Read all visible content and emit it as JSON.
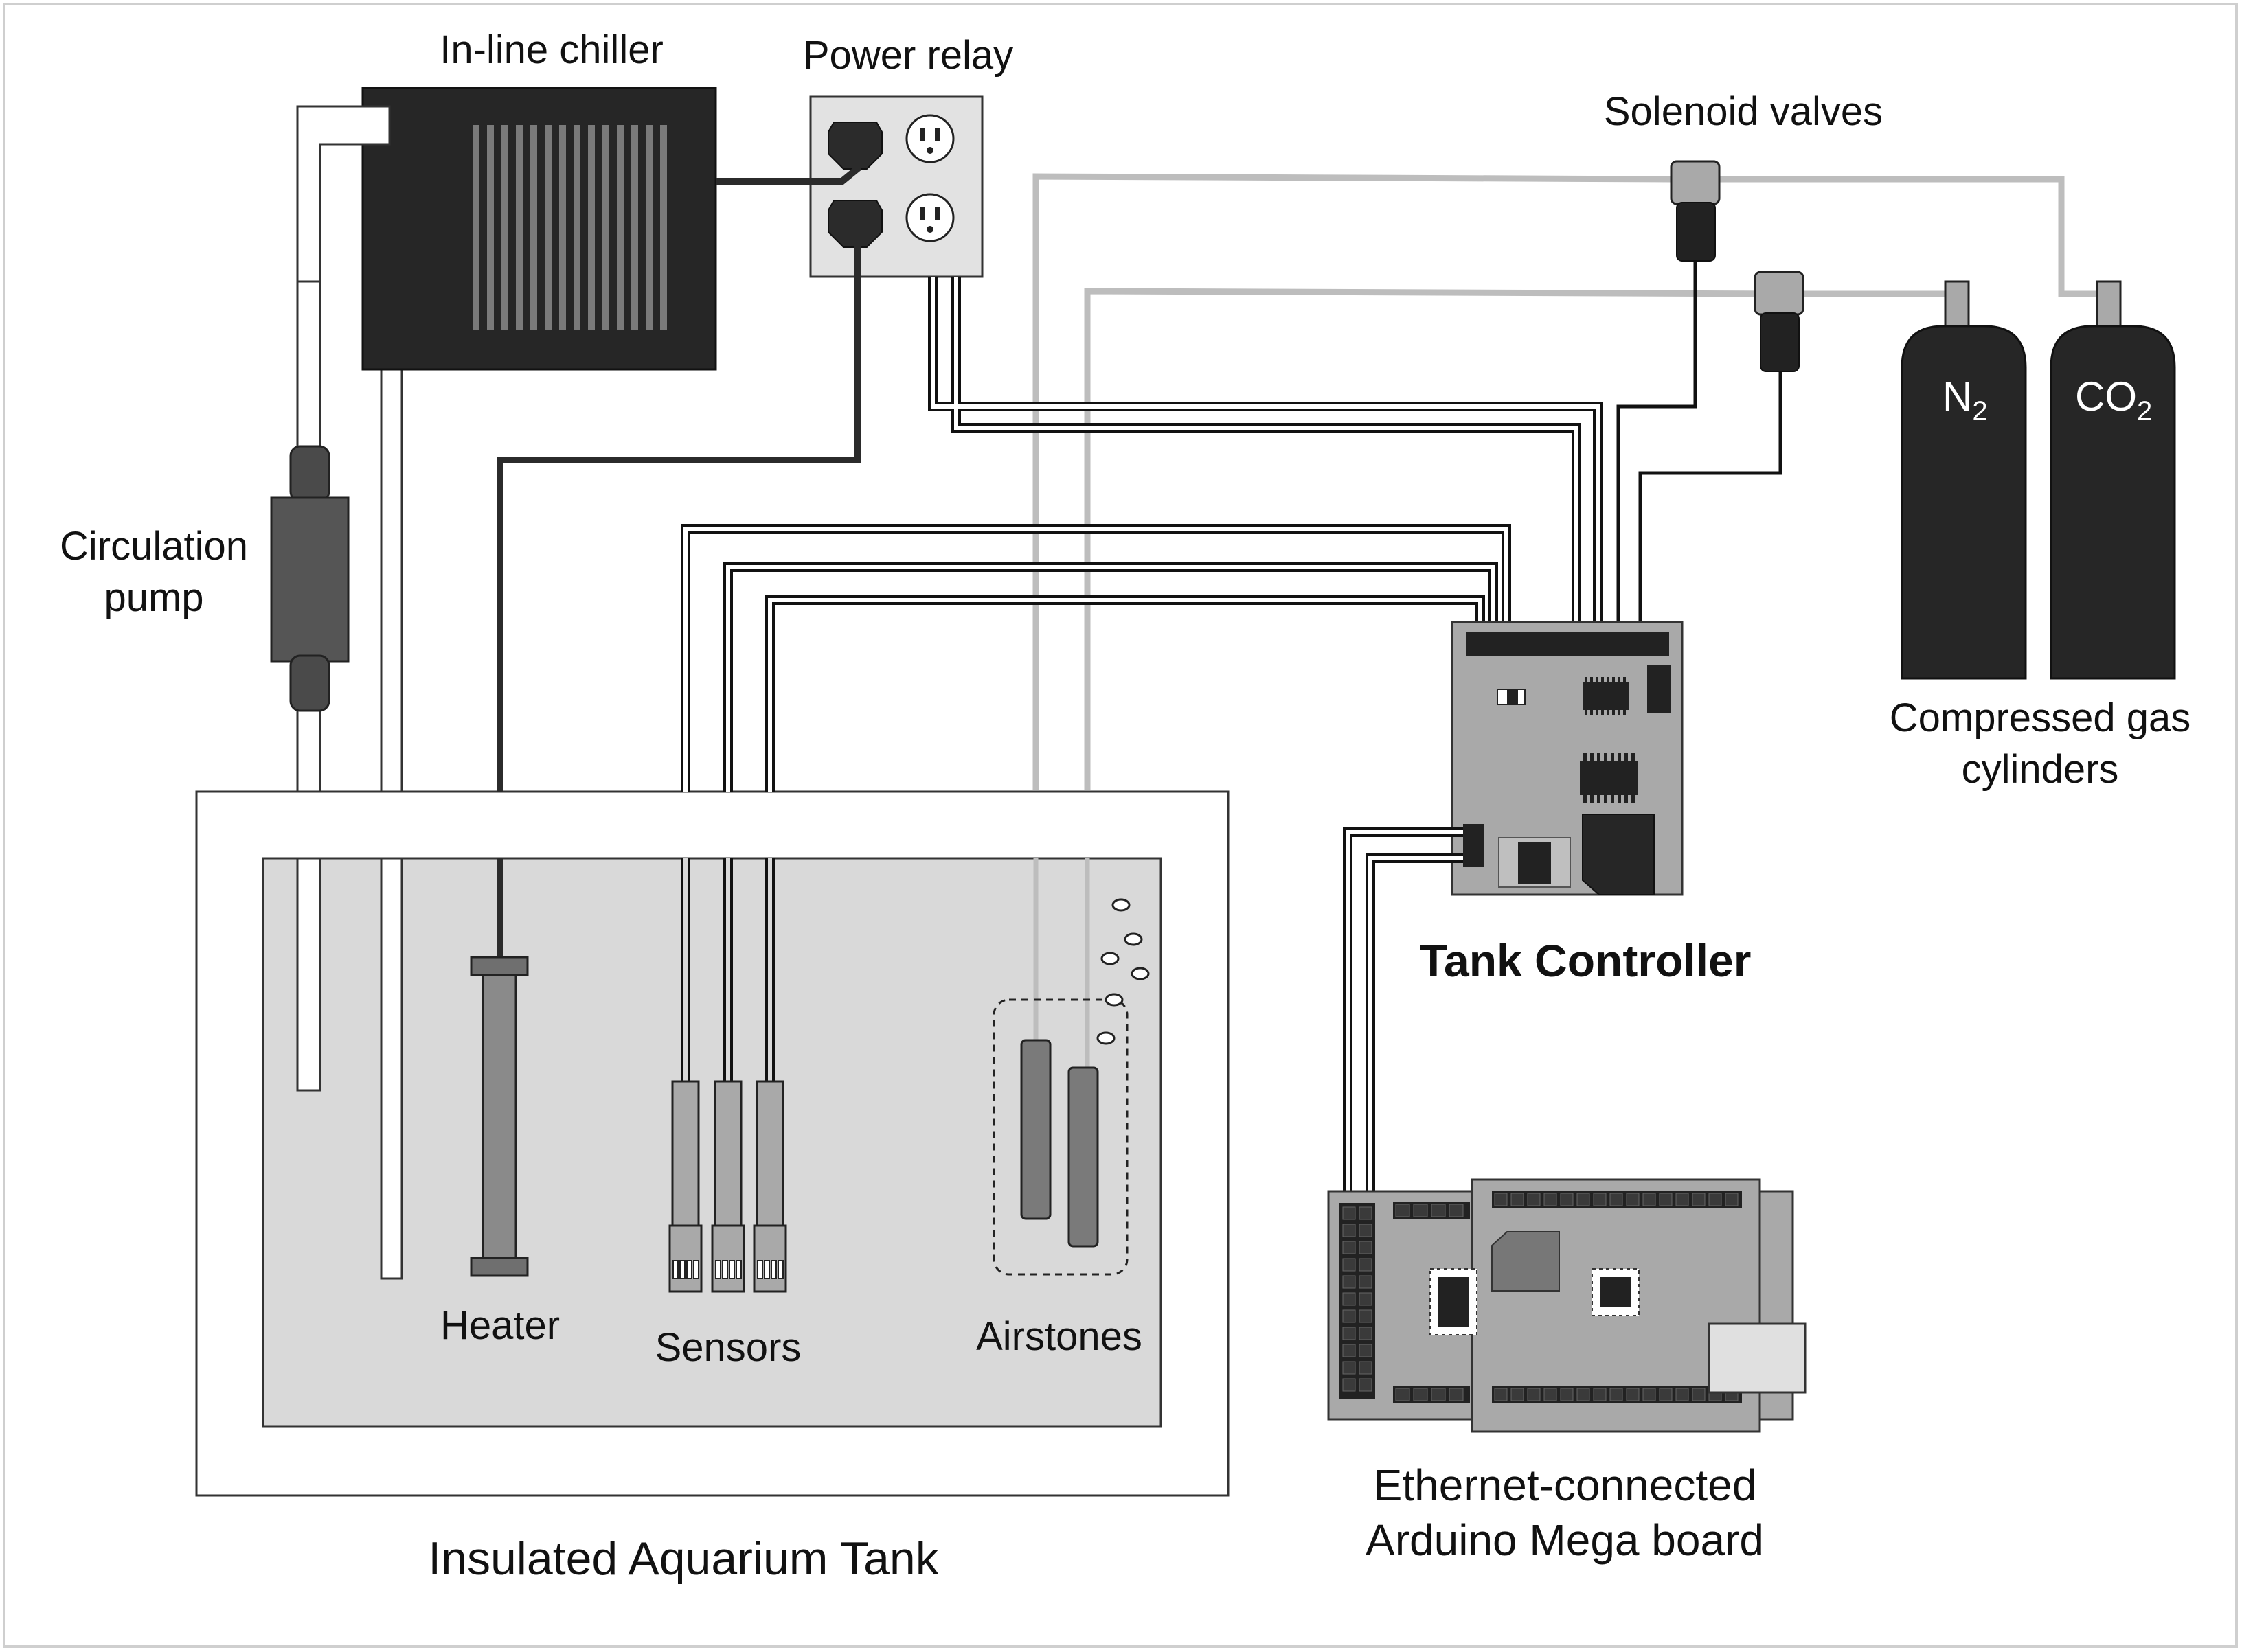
{
  "labels": {
    "chiller": "In-line chiller",
    "relay": "Power relay",
    "solenoid": "Solenoid valves",
    "pump_l1": "Circulation",
    "pump_l2": "pump",
    "controller": "Tank Controller",
    "cylinders_l1": "Compressed gas",
    "cylinders_l2": "cylinders",
    "heater": "Heater",
    "sensors": "Sensors",
    "airstones": "Airstones",
    "tank": "Insulated Aquarium Tank",
    "arduino_l1": "Ethernet-connected",
    "arduino_l2": "Arduino Mega board"
  },
  "cylinders": {
    "n2_main": "N",
    "n2_sub": "2",
    "co2_main": "CO",
    "co2_sub": "2"
  },
  "colors": {
    "dark": "#2b2b2b",
    "mid_gray": "#8a8a8a",
    "board_gray": "#a9a9a9",
    "light_gray": "#d9d9d9",
    "gas_line": "#bdbdbd",
    "background": "#ffffff"
  }
}
